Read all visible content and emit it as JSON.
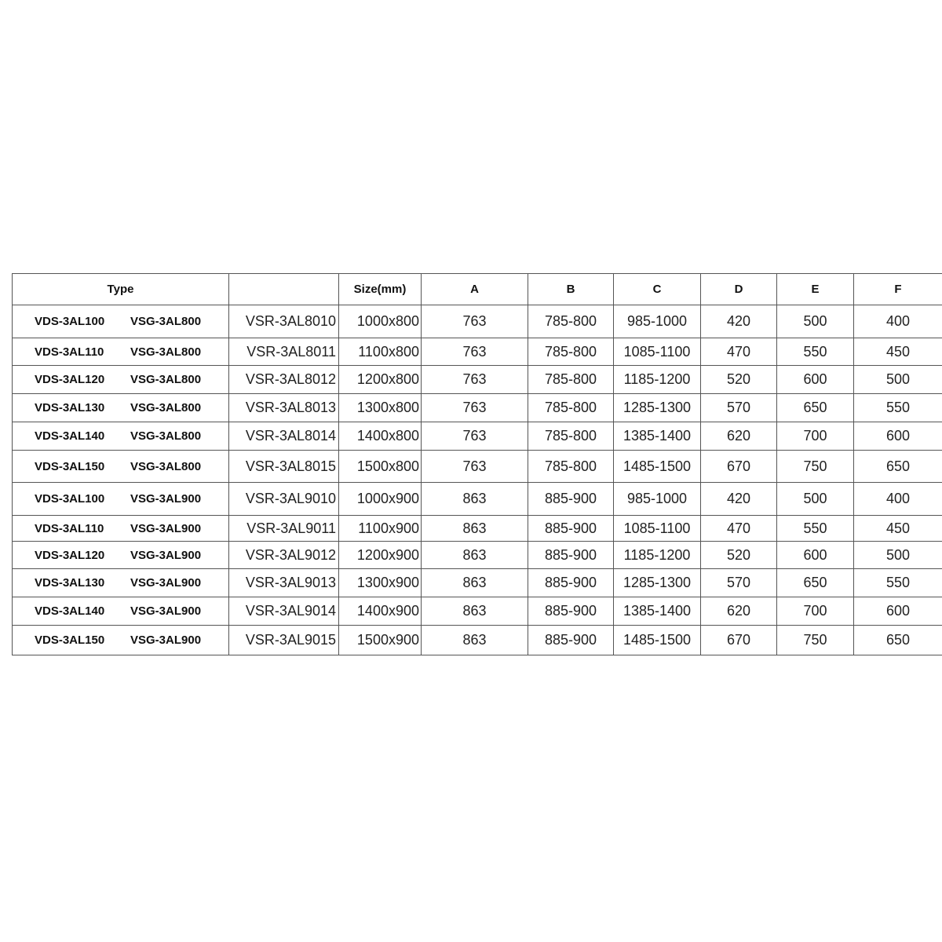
{
  "headers": [
    "Type",
    "",
    "Size(mm)",
    "A",
    "B",
    "C",
    "D",
    "E",
    "F"
  ],
  "rows": [
    [
      "VDS-3AL100",
      "VSG-3AL800",
      "VSR-3AL8010",
      "1000x800",
      "763",
      "785-800",
      "985-1000",
      "420",
      "500",
      "400"
    ],
    [
      "VDS-3AL110",
      "VSG-3AL800",
      "VSR-3AL8011",
      "1100x800",
      "763",
      "785-800",
      "1085-1100",
      "470",
      "550",
      "450"
    ],
    [
      "VDS-3AL120",
      "VSG-3AL800",
      "VSR-3AL8012",
      "1200x800",
      "763",
      "785-800",
      "1185-1200",
      "520",
      "600",
      "500"
    ],
    [
      "VDS-3AL130",
      "VSG-3AL800",
      "VSR-3AL8013",
      "1300x800",
      "763",
      "785-800",
      "1285-1300",
      "570",
      "650",
      "550"
    ],
    [
      "VDS-3AL140",
      "VSG-3AL800",
      "VSR-3AL8014",
      "1400x800",
      "763",
      "785-800",
      "1385-1400",
      "620",
      "700",
      "600"
    ],
    [
      "VDS-3AL150",
      "VSG-3AL800",
      "VSR-3AL8015",
      "1500x800",
      "763",
      "785-800",
      "1485-1500",
      "670",
      "750",
      "650"
    ],
    [
      "VDS-3AL100",
      "VSG-3AL900",
      "VSR-3AL9010",
      "1000x900",
      "863",
      "885-900",
      "985-1000",
      "420",
      "500",
      "400"
    ],
    [
      "VDS-3AL110",
      "VSG-3AL900",
      "VSR-3AL9011",
      "1100x900",
      "863",
      "885-900",
      "1085-1100",
      "470",
      "550",
      "450"
    ],
    [
      "VDS-3AL120",
      "VSG-3AL900",
      "VSR-3AL9012",
      "1200x900",
      "863",
      "885-900",
      "1185-1200",
      "520",
      "600",
      "500"
    ],
    [
      "VDS-3AL130",
      "VSG-3AL900",
      "VSR-3AL9013",
      "1300x900",
      "863",
      "885-900",
      "1285-1300",
      "570",
      "650",
      "550"
    ],
    [
      "VDS-3AL140",
      "VSG-3AL900",
      "VSR-3AL9014",
      "1400x900",
      "863",
      "885-900",
      "1385-1400",
      "620",
      "700",
      "600"
    ],
    [
      "VDS-3AL150",
      "VSG-3AL900",
      "VSR-3AL9015",
      "1500x900",
      "863",
      "885-900",
      "1485-1500",
      "670",
      "750",
      "650"
    ]
  ]
}
